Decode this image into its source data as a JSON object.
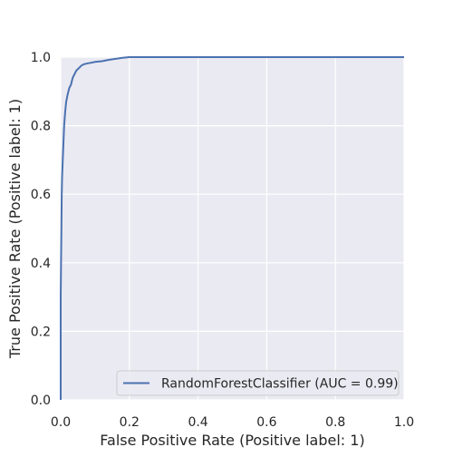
{
  "chart_data": {
    "type": "line",
    "title": "",
    "xlabel": "False Positive Rate (Positive label: 1)",
    "ylabel": "True Positive Rate (Positive label: 1)",
    "xlim": [
      0.0,
      1.0
    ],
    "ylim": [
      0.0,
      1.0
    ],
    "x_ticks": [
      0.0,
      0.2,
      0.4,
      0.6,
      0.8,
      1.0
    ],
    "y_ticks": [
      0.0,
      0.2,
      0.4,
      0.6,
      0.8,
      1.0
    ],
    "x_tick_labels": [
      "0.0",
      "0.2",
      "0.4",
      "0.6",
      "0.8",
      "1.0"
    ],
    "y_tick_labels": [
      "0.0",
      "0.2",
      "0.4",
      "0.6",
      "0.8",
      "1.0"
    ],
    "grid": true,
    "legend_position": "lower-right",
    "colors": {
      "plot_background": "#eaeaf2",
      "grid": "#ffffff",
      "series": "#4c72b0",
      "text": "#262626"
    },
    "series": [
      {
        "name": "RandomForestClassifier (AUC = 0.99)",
        "x": [
          0.0,
          0.0,
          0.002,
          0.003,
          0.004,
          0.006,
          0.008,
          0.01,
          0.013,
          0.016,
          0.02,
          0.025,
          0.03,
          0.035,
          0.04,
          0.045,
          0.05,
          0.055,
          0.06,
          0.065,
          0.07,
          0.08,
          0.09,
          0.1,
          0.12,
          0.14,
          0.16,
          0.18,
          0.2,
          0.25,
          0.4,
          0.6,
          0.8,
          1.0
        ],
        "y": [
          0.0,
          0.3,
          0.5,
          0.6,
          0.65,
          0.7,
          0.75,
          0.8,
          0.84,
          0.87,
          0.89,
          0.91,
          0.92,
          0.94,
          0.95,
          0.96,
          0.965,
          0.97,
          0.975,
          0.978,
          0.98,
          0.982,
          0.984,
          0.986,
          0.988,
          0.992,
          0.995,
          0.998,
          1.0,
          1.0,
          1.0,
          1.0,
          1.0,
          1.0
        ]
      }
    ]
  }
}
